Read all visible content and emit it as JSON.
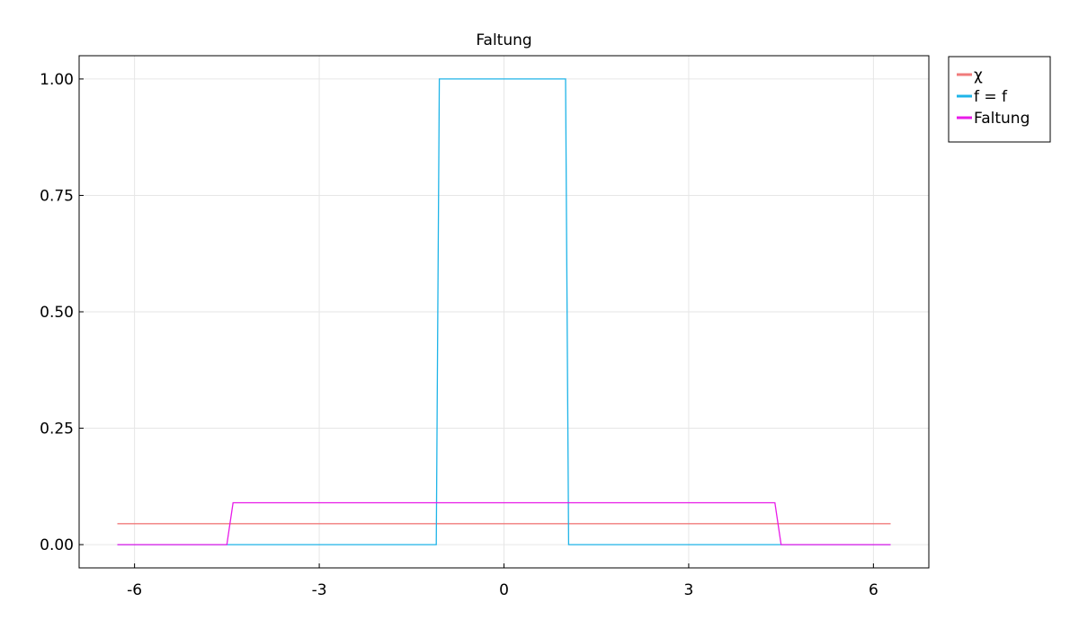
{
  "chart_data": {
    "type": "line",
    "title": "Faltung",
    "xlabel": "",
    "ylabel": "",
    "xlim": [
      -6.9,
      6.9
    ],
    "ylim": [
      -0.05,
      1.05
    ],
    "xticks": [
      -6,
      -3,
      0,
      3,
      6
    ],
    "xtick_labels": [
      "-6",
      "-3",
      "0",
      "3",
      "6"
    ],
    "yticks": [
      0,
      0.25,
      0.5,
      0.75,
      1.0
    ],
    "ytick_labels": [
      "0.00",
      "0.25",
      "0.50",
      "0.75",
      "1.00"
    ],
    "grid": true,
    "legend_position": "outside-top-right",
    "series": [
      {
        "name": "χ",
        "color": "#f07b7b",
        "x": [
          -6.28,
          6.28
        ],
        "y": [
          0.045,
          0.045
        ]
      },
      {
        "name": "f = f",
        "color": "#1fb4e8",
        "x": [
          -6.28,
          -1.1,
          -1.05,
          1.0,
          1.05,
          6.28
        ],
        "y": [
          0,
          0,
          1,
          1,
          0,
          0
        ]
      },
      {
        "name": "Faltung",
        "color": "#e81be8",
        "x": [
          -6.28,
          -4.5,
          -4.4,
          4.4,
          4.5,
          6.28
        ],
        "y": [
          0,
          0,
          0.09,
          0.09,
          0,
          0
        ]
      }
    ]
  }
}
